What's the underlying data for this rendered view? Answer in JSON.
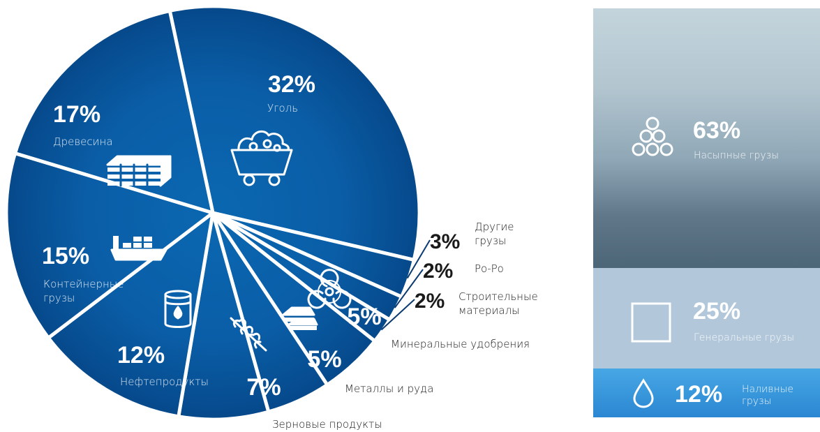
{
  "chart_data": {
    "type": "pie",
    "title": "",
    "slices": [
      {
        "label": "Уголь",
        "value": 32,
        "value_label": "32%",
        "icon": "coal-cart-icon"
      },
      {
        "label": "Другие грузы",
        "value": 3,
        "value_label": "3%"
      },
      {
        "label": "Ро-Ро",
        "value": 2,
        "value_label": "2%"
      },
      {
        "label": "Строительные материалы",
        "value": 2,
        "value_label": "2%"
      },
      {
        "label": "Минеральные удобрения",
        "value": 5,
        "value_label": "5%",
        "icon": "biohazard-icon"
      },
      {
        "label": "Металлы и руда",
        "value": 5,
        "value_label": "5%",
        "icon": "metal-ingots-icon"
      },
      {
        "label": "Зерновые продукты",
        "value": 7,
        "value_label": "7%",
        "icon": "wheat-icon"
      },
      {
        "label": "Нефтепродукты",
        "value": 12,
        "value_label": "12%",
        "icon": "oil-barrel-icon"
      },
      {
        "label": "Контейнерные грузы",
        "value": 15,
        "value_label": "15%",
        "icon": "container-ship-icon"
      },
      {
        "label": "Древесина",
        "value": 17,
        "value_label": "17%",
        "icon": "timber-stack-icon"
      }
    ],
    "colors": {
      "slice_light": "#0b67b1",
      "slice_dark": "#07488a",
      "separator": "#ffffff",
      "outside_text": "#1a1a1a"
    }
  },
  "panel": {
    "bulk": {
      "value_label": "63%",
      "label": "Насыпные грузы",
      "icon": "bulk-pile-icon"
    },
    "general": {
      "value_label": "25%",
      "label": "Генеральные грузы",
      "icon": "square-box-icon"
    },
    "liquid": {
      "value_label": "12%",
      "label_line1": "Наливные",
      "label_line2": "грузы",
      "icon": "drop-icon"
    }
  }
}
